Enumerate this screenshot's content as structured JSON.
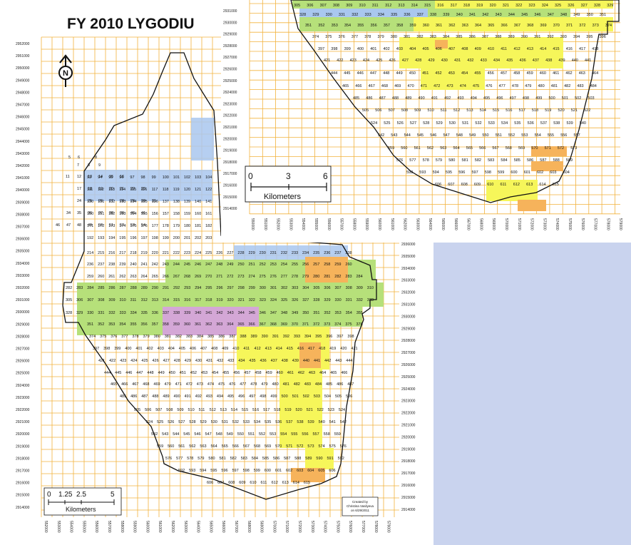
{
  "title": "FY 2010 LYGODIU",
  "north_arrow": {
    "icon": "north-arrow-icon",
    "label": "N"
  },
  "main_map": {
    "y_ticks": [
      "2952000",
      "2951000",
      "2950000",
      "2949000",
      "2948000",
      "2947000",
      "2946000",
      "2945000",
      "2944000",
      "2943000",
      "2942000",
      "2941000",
      "2940000",
      "2939000",
      "2938000",
      "2937000",
      "2936000",
      "2935000",
      "2934000",
      "2933000",
      "2932000",
      "2931000",
      "2930000",
      "2929000",
      "2928000",
      "2927000",
      "2926000",
      "2925000",
      "2924000",
      "2923000",
      "2922000",
      "2921000",
      "2920000",
      "2919000",
      "2918000",
      "2917000",
      "2916000",
      "2915000",
      "2914000"
    ],
    "x_ticks": [
      "552000",
      "553000",
      "554000",
      "555000",
      "556000",
      "557000",
      "558000",
      "559000",
      "560000",
      "561000",
      "562000",
      "563000",
      "564000",
      "565000",
      "566000",
      "567000",
      "568000",
      "569000",
      "570000",
      "571000",
      "572000",
      "573000",
      "574000",
      "575000",
      "576000",
      "577000",
      "578000",
      "579000"
    ],
    "right_y_ticks": [
      "2936000",
      "2935000",
      "2934000",
      "2933000",
      "2932000",
      "2931000",
      "2930000",
      "2929000",
      "2928000",
      "2927000",
      "2926000",
      "2925000",
      "2924000",
      "2923000",
      "2922000",
      "2921000",
      "2920000",
      "2919000",
      "2918000",
      "2917000",
      "2916000",
      "2915000",
      "2914000"
    ],
    "scale_bar": {
      "labels": [
        "0",
        "1.25",
        "2.5",
        "5"
      ],
      "unit": "Kilometers"
    },
    "credit": [
      "Created by",
      "Christina Vasilyeva",
      "on 6/29/2011"
    ]
  },
  "inset_map": {
    "y_ticks": [
      "2931000",
      "2930000",
      "2929000",
      "2928000",
      "2927000",
      "2926000",
      "2925000",
      "2924000",
      "2923000",
      "2922000",
      "2921000",
      "2920000",
      "2919000",
      "2918000",
      "2917000",
      "2916000",
      "2915000",
      "2914000"
    ],
    "x_ticks": [
      "550000",
      "551000",
      "552000",
      "553000",
      "554000",
      "555000",
      "556000",
      "557000",
      "558000",
      "559000",
      "560000",
      "561000",
      "562000",
      "563000",
      "564000",
      "565000",
      "566000",
      "567000",
      "568000",
      "569000",
      "570000",
      "571000",
      "572000",
      "573000",
      "574000",
      "575000",
      "576000",
      "577000",
      "578000",
      "579000"
    ],
    "scale_bar": {
      "labels": [
        "0",
        "3",
        "6"
      ],
      "unit": "Kilometers"
    }
  },
  "colors": {
    "grid": "#f2b23c",
    "boundary": "#111111",
    "green": "#b6e07a",
    "yellow": "#f6f65a",
    "blue": "#a9c7ef",
    "orange": "#f6b35b",
    "pink": "#d4a7d6",
    "slide_panel": "#c9d3ee"
  },
  "main_cells": [
    [
      96,
      222,
      5
    ],
    [
      109,
      222,
      6
    ],
    [
      133,
      222,
      8
    ],
    [
      108,
      233,
      7
    ],
    [
      123,
      233,
      8
    ],
    [
      138,
      233,
      9
    ],
    [
      92,
      249,
      11
    ],
    [
      108,
      249,
      12
    ],
    [
      123,
      249,
      13
    ],
    [
      138,
      249,
      14
    ],
    [
      153,
      249,
      15
    ],
    [
      168,
      249,
      16
    ],
    [
      108,
      266,
      17
    ],
    [
      123,
      266,
      18
    ],
    [
      138,
      266,
      19
    ],
    [
      153,
      266,
      20
    ],
    [
      168,
      266,
      21
    ],
    [
      183,
      266,
      22
    ],
    [
      198,
      266,
      23
    ],
    [
      108,
      283,
      24
    ],
    [
      123,
      283,
      25
    ],
    [
      138,
      283,
      26
    ],
    [
      153,
      283,
      27
    ],
    [
      168,
      283,
      28
    ],
    [
      183,
      283,
      29
    ],
    [
      198,
      283,
      30
    ],
    [
      213,
      283,
      31
    ],
    [
      93,
      300,
      34
    ],
    [
      108,
      300,
      35
    ],
    [
      123,
      300,
      36
    ],
    [
      138,
      300,
      37
    ],
    [
      153,
      300,
      38
    ],
    [
      168,
      300,
      39
    ],
    [
      183,
      300,
      40
    ],
    [
      198,
      300,
      41
    ],
    [
      78,
      317,
      46
    ],
    [
      93,
      317,
      47
    ],
    [
      108,
      317,
      48
    ],
    [
      123,
      317,
      49
    ],
    [
      138,
      317,
      50
    ],
    [
      153,
      317,
      51
    ],
    [
      168,
      317,
      52
    ],
    [
      183,
      317,
      53
    ],
    [
      198,
      317,
      54
    ]
  ]
}
